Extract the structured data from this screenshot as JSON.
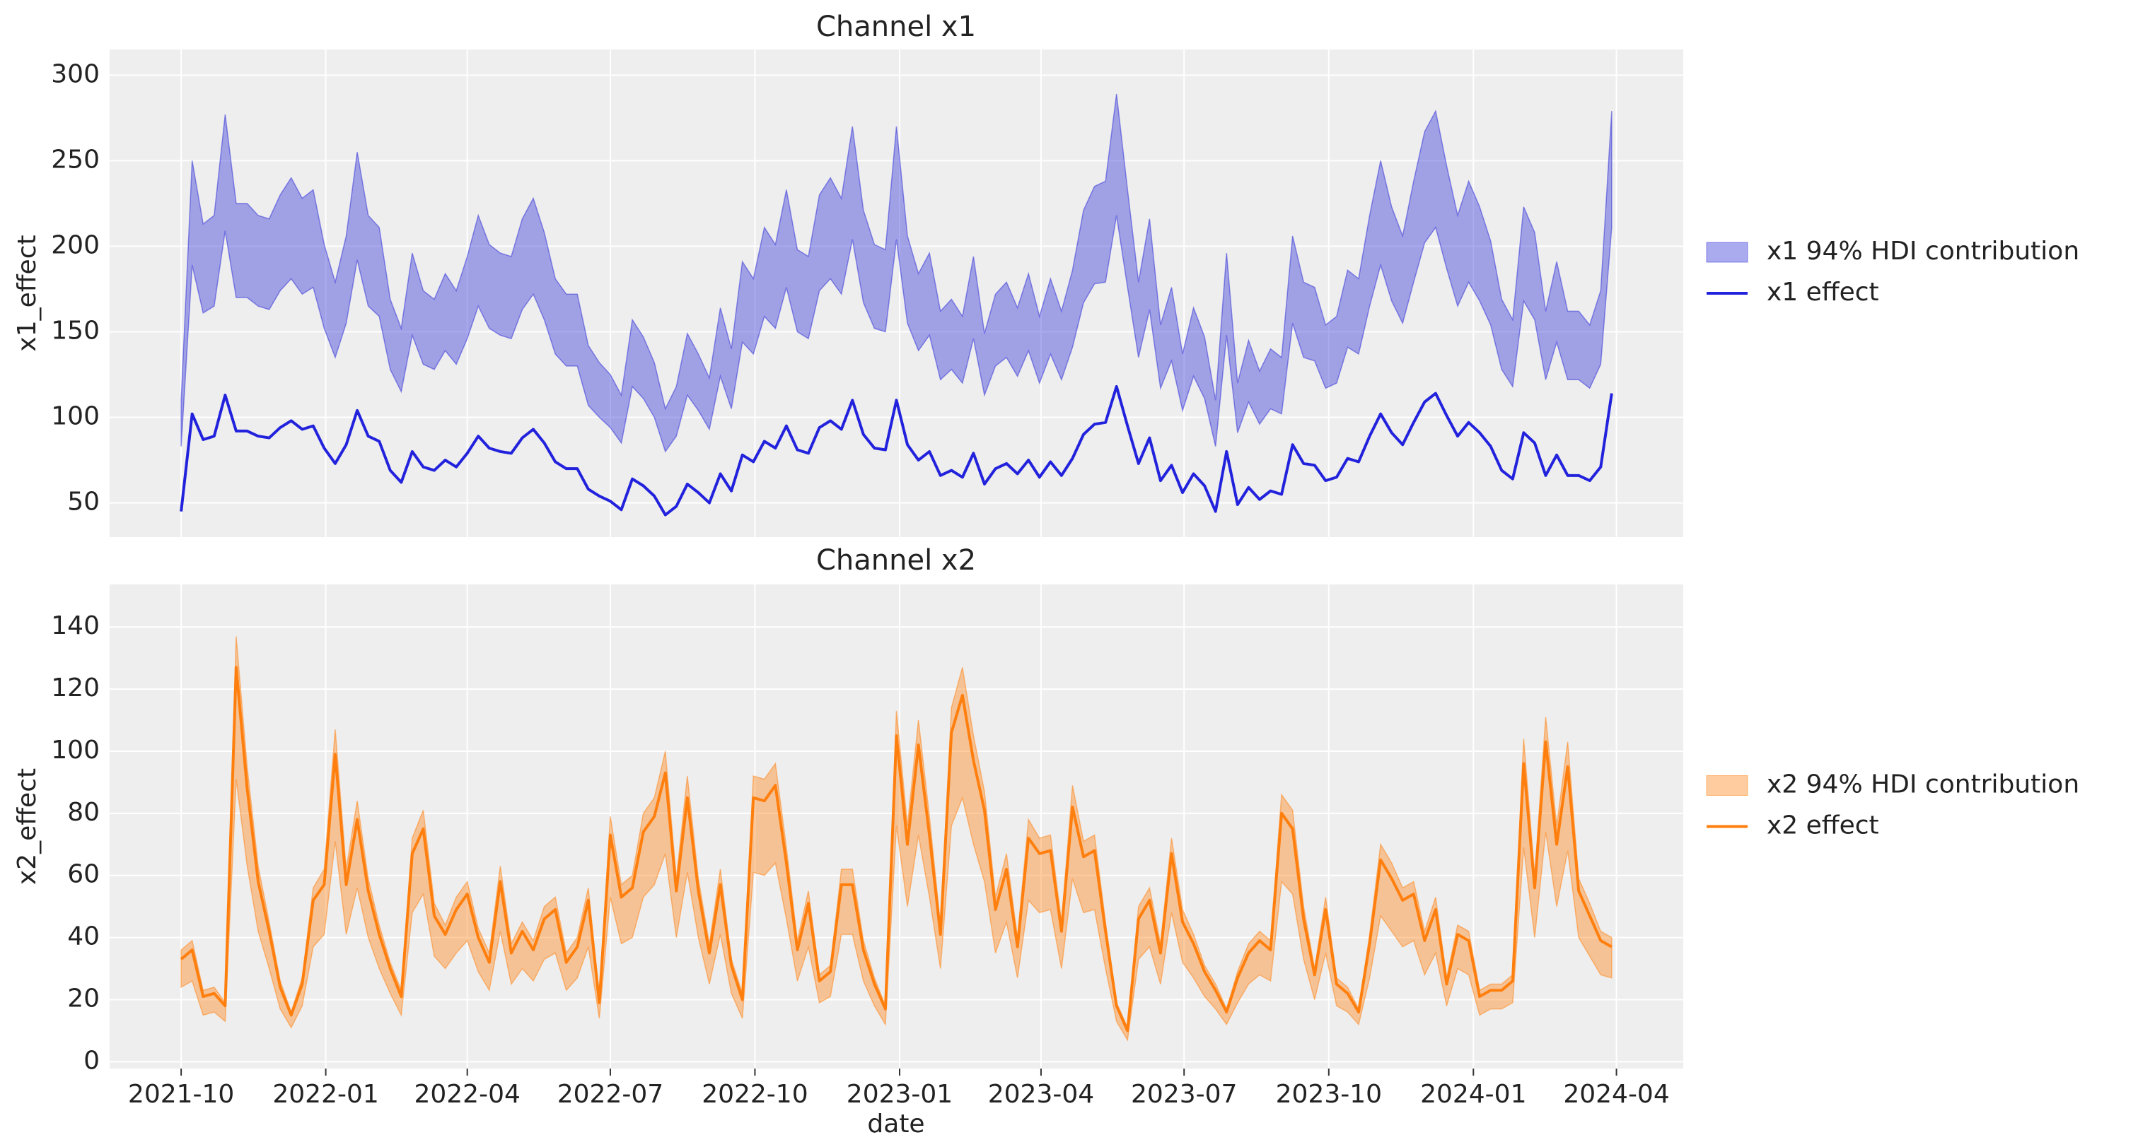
{
  "chart_data": [
    {
      "type": "band_line",
      "title": "Channel x1",
      "ylabel": "x1_effect",
      "xlim": [
        -6.5,
        136.5
      ],
      "ylim": [
        30,
        315
      ],
      "yticks": [
        50,
        100,
        150,
        200,
        250,
        300
      ],
      "grid": true,
      "legend": "right",
      "series": [
        {
          "name": "x1 94% HDI contribution",
          "color": "#2a2ad8",
          "hdi_lower": [
            83,
            189,
            161,
            165,
            209,
            170,
            170,
            165,
            163,
            174,
            181,
            172,
            176,
            152,
            135,
            155,
            192,
            165,
            159,
            128,
            115,
            148,
            131,
            128,
            139,
            131,
            146,
            165,
            152,
            148,
            146,
            163,
            172,
            157,
            137,
            130,
            130,
            107,
            100,
            94,
            85,
            118,
            111,
            100,
            80,
            89,
            113,
            104,
            93,
            124,
            105,
            144,
            137,
            159,
            152,
            176,
            150,
            146,
            174,
            181,
            172,
            204,
            167,
            152,
            150,
            204,
            155,
            139,
            148,
            122,
            128,
            120,
            146,
            113,
            130,
            135,
            124,
            139,
            120,
            137,
            122,
            141,
            167,
            178,
            179,
            218,
            176,
            135,
            163,
            117,
            133,
            104,
            124,
            111,
            83,
            148,
            91,
            109,
            96,
            105,
            102,
            155,
            135,
            133,
            117,
            120,
            141,
            137,
            165,
            189,
            168,
            155,
            179,
            202,
            211,
            187,
            165,
            179,
            168,
            154,
            128,
            118,
            168,
            157,
            122,
            144,
            122,
            122,
            117,
            131,
            211
          ],
          "hdi_upper": [
            110,
            250,
            213,
            218,
            277,
            225,
            225,
            218,
            216,
            230,
            240,
            228,
            233,
            201,
            179,
            206,
            255,
            218,
            211,
            169,
            152,
            196,
            174,
            169,
            184,
            174,
            194,
            218,
            201,
            196,
            194,
            216,
            228,
            208,
            181,
            172,
            172,
            142,
            132,
            125,
            113,
            157,
            147,
            132,
            105,
            118,
            149,
            137,
            123,
            164,
            140,
            191,
            181,
            211,
            201,
            233,
            198,
            194,
            230,
            240,
            228,
            270,
            221,
            201,
            198,
            270,
            206,
            184,
            196,
            162,
            169,
            159,
            194,
            149,
            172,
            179,
            164,
            184,
            159,
            181,
            162,
            186,
            221,
            235,
            238,
            289,
            233,
            179,
            216,
            154,
            176,
            137,
            164,
            147,
            110,
            196,
            120,
            145,
            127,
            140,
            135,
            206,
            179,
            176,
            154,
            159,
            186,
            181,
            218,
            250,
            223,
            206,
            238,
            267,
            279,
            247,
            218,
            238,
            223,
            203,
            169,
            157,
            223,
            208,
            162,
            191,
            162,
            162,
            154,
            174,
            279
          ]
        },
        {
          "name": "x1 effect",
          "color": "#2222dd",
          "values": [
            45,
            102,
            87,
            89,
            113,
            92,
            92,
            89,
            88,
            94,
            98,
            93,
            95,
            82,
            73,
            84,
            104,
            89,
            86,
            69,
            62,
            80,
            71,
            69,
            75,
            71,
            79,
            89,
            82,
            80,
            79,
            88,
            93,
            85,
            74,
            70,
            70,
            58,
            54,
            51,
            46,
            64,
            60,
            54,
            43,
            48,
            61,
            56,
            50,
            67,
            57,
            78,
            74,
            86,
            82,
            95,
            81,
            79,
            94,
            98,
            93,
            110,
            90,
            82,
            81,
            110,
            84,
            75,
            80,
            66,
            69,
            65,
            79,
            61,
            70,
            73,
            67,
            75,
            65,
            74,
            66,
            76,
            90,
            96,
            97,
            118,
            95,
            73,
            88,
            63,
            72,
            56,
            67,
            60,
            45,
            80,
            49,
            59,
            52,
            57,
            55,
            84,
            73,
            72,
            63,
            65,
            76,
            74,
            89,
            102,
            91,
            84,
            97,
            109,
            114,
            101,
            89,
            97,
            91,
            83,
            69,
            64,
            91,
            85,
            66,
            78,
            66,
            66,
            63,
            71,
            114
          ]
        }
      ]
    },
    {
      "type": "band_line",
      "title": "Channel x2",
      "ylabel": "x2_effect",
      "xlabel": "date",
      "xlim": [
        -6.5,
        136.5
      ],
      "ylim": [
        -2.2,
        153.7
      ],
      "yticks": [
        0,
        20,
        40,
        60,
        80,
        100,
        120,
        140
      ],
      "grid": true,
      "legend": "right",
      "xticks": [
        {
          "value": 0,
          "label": "2021-10"
        },
        {
          "value": 13.14,
          "label": "2022-01"
        },
        {
          "value": 26,
          "label": "2022-04"
        },
        {
          "value": 39,
          "label": "2022-07"
        },
        {
          "value": 52.14,
          "label": "2022-10"
        },
        {
          "value": 65.29,
          "label": "2023-01"
        },
        {
          "value": 78.14,
          "label": "2023-04"
        },
        {
          "value": 91.14,
          "label": "2023-07"
        },
        {
          "value": 104.29,
          "label": "2023-10"
        },
        {
          "value": 117.43,
          "label": "2024-01"
        },
        {
          "value": 130.43,
          "label": "2024-04"
        }
      ],
      "series": [
        {
          "name": "x2 94% HDI contribution",
          "color": "#ff7f0e",
          "hdi_lower": [
            24,
            26,
            15,
            16,
            13,
            91,
            63,
            42,
            30,
            17,
            11,
            18,
            37,
            41,
            71,
            41,
            56,
            40,
            30,
            22,
            15,
            48,
            54,
            34,
            30,
            35,
            39,
            29,
            23,
            42,
            25,
            30,
            26,
            33,
            35,
            23,
            27,
            37,
            14,
            53,
            38,
            40,
            53,
            57,
            67,
            40,
            61,
            40,
            25,
            41,
            22,
            14,
            61,
            60,
            64,
            46,
            26,
            37,
            19,
            21,
            41,
            41,
            26,
            18,
            12,
            76,
            50,
            73,
            53,
            30,
            76,
            85,
            70,
            58,
            35,
            45,
            27,
            52,
            48,
            49,
            30,
            59,
            48,
            49,
            30,
            13,
            7,
            33,
            37,
            25,
            48,
            32,
            27,
            21,
            17,
            12,
            19,
            25,
            28,
            26,
            58,
            54,
            33,
            20,
            35,
            18,
            16,
            12,
            27,
            47,
            42,
            37,
            39,
            28,
            35,
            18,
            30,
            28,
            15,
            17,
            17,
            19,
            69,
            40,
            74,
            50,
            68,
            40,
            34,
            28,
            27
          ],
          "hdi_upper": [
            36,
            39,
            23,
            24,
            19,
            137,
            95,
            63,
            45,
            26,
            16,
            27,
            56,
            62,
            107,
            62,
            84,
            59,
            44,
            32,
            23,
            72,
            81,
            51,
            44,
            53,
            58,
            43,
            35,
            63,
            38,
            45,
            39,
            50,
            53,
            35,
            40,
            56,
            21,
            79,
            57,
            60,
            80,
            85,
            100,
            59,
            92,
            59,
            38,
            62,
            33,
            22,
            92,
            91,
            96,
            69,
            39,
            55,
            28,
            31,
            62,
            62,
            39,
            27,
            18,
            113,
            76,
            110,
            79,
            44,
            114,
            127,
            105,
            87,
            53,
            67,
            40,
            78,
            72,
            73,
            45,
            89,
            71,
            73,
            45,
            19,
            11,
            50,
            56,
            38,
            72,
            49,
            41,
            31,
            25,
            17,
            29,
            38,
            42,
            39,
            86,
            81,
            50,
            30,
            53,
            27,
            24,
            17,
            41,
            70,
            64,
            56,
            58,
            42,
            53,
            27,
            44,
            42,
            23,
            25,
            25,
            28,
            104,
            60,
            111,
            76,
            103,
            59,
            51,
            42,
            40
          ]
        },
        {
          "name": "x2 effect",
          "color": "#ff7f0e",
          "values": [
            33,
            36,
            21,
            22,
            18,
            127,
            88,
            58,
            42,
            24,
            15,
            25,
            52,
            57,
            99,
            57,
            78,
            55,
            41,
            30,
            21,
            67,
            75,
            47,
            41,
            49,
            54,
            40,
            32,
            58,
            35,
            42,
            36,
            46,
            49,
            32,
            37,
            52,
            19,
            73,
            53,
            56,
            74,
            79,
            93,
            55,
            85,
            55,
            35,
            57,
            31,
            20,
            85,
            84,
            89,
            64,
            36,
            51,
            26,
            29,
            57,
            57,
            36,
            25,
            17,
            105,
            70,
            102,
            73,
            41,
            106,
            118,
            97,
            81,
            49,
            62,
            37,
            72,
            67,
            68,
            42,
            82,
            66,
            68,
            42,
            18,
            10,
            46,
            52,
            35,
            67,
            45,
            38,
            29,
            23,
            16,
            27,
            35,
            39,
            36,
            80,
            75,
            46,
            28,
            49,
            25,
            22,
            16,
            38,
            65,
            59,
            52,
            54,
            39,
            49,
            25,
            41,
            39,
            21,
            23,
            23,
            26,
            96,
            56,
            103,
            70,
            95,
            55,
            47,
            39,
            37
          ]
        }
      ]
    }
  ]
}
